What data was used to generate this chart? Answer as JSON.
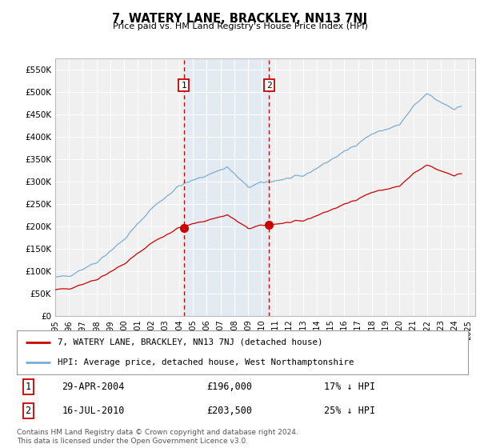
{
  "title": "7, WATERY LANE, BRACKLEY, NN13 7NJ",
  "subtitle": "Price paid vs. HM Land Registry's House Price Index (HPI)",
  "ylabel_ticks": [
    "£0",
    "£50K",
    "£100K",
    "£150K",
    "£200K",
    "£250K",
    "£300K",
    "£350K",
    "£400K",
    "£450K",
    "£500K",
    "£550K"
  ],
  "ytick_values": [
    0,
    50000,
    100000,
    150000,
    200000,
    250000,
    300000,
    350000,
    400000,
    450000,
    500000,
    550000
  ],
  "ylim": [
    0,
    575000
  ],
  "sale1": {
    "date_num": 2004.33,
    "price": 196000,
    "label": "1",
    "date_str": "29-APR-2004",
    "pct": "17% ↓ HPI"
  },
  "sale2": {
    "date_num": 2010.54,
    "price": 203500,
    "label": "2",
    "date_str": "16-JUL-2010",
    "pct": "25% ↓ HPI"
  },
  "legend_red": "7, WATERY LANE, BRACKLEY, NN13 7NJ (detached house)",
  "legend_blue": "HPI: Average price, detached house, West Northamptonshire",
  "footnote": "Contains HM Land Registry data © Crown copyright and database right 2024.\nThis data is licensed under the Open Government Licence v3.0.",
  "hpi_color": "#7aadd4",
  "sale_color": "#cc0000",
  "background_color": "#ffffff",
  "plot_bg_color": "#f0f0f0",
  "grid_color": "#ffffff",
  "shade_color": "#cce0f5",
  "xtick_years": [
    1995,
    1996,
    1997,
    1998,
    1999,
    2000,
    2001,
    2002,
    2003,
    2004,
    2005,
    2006,
    2007,
    2008,
    2009,
    2010,
    2011,
    2012,
    2013,
    2014,
    2015,
    2016,
    2017,
    2018,
    2019,
    2020,
    2021,
    2022,
    2023,
    2024,
    2025
  ]
}
